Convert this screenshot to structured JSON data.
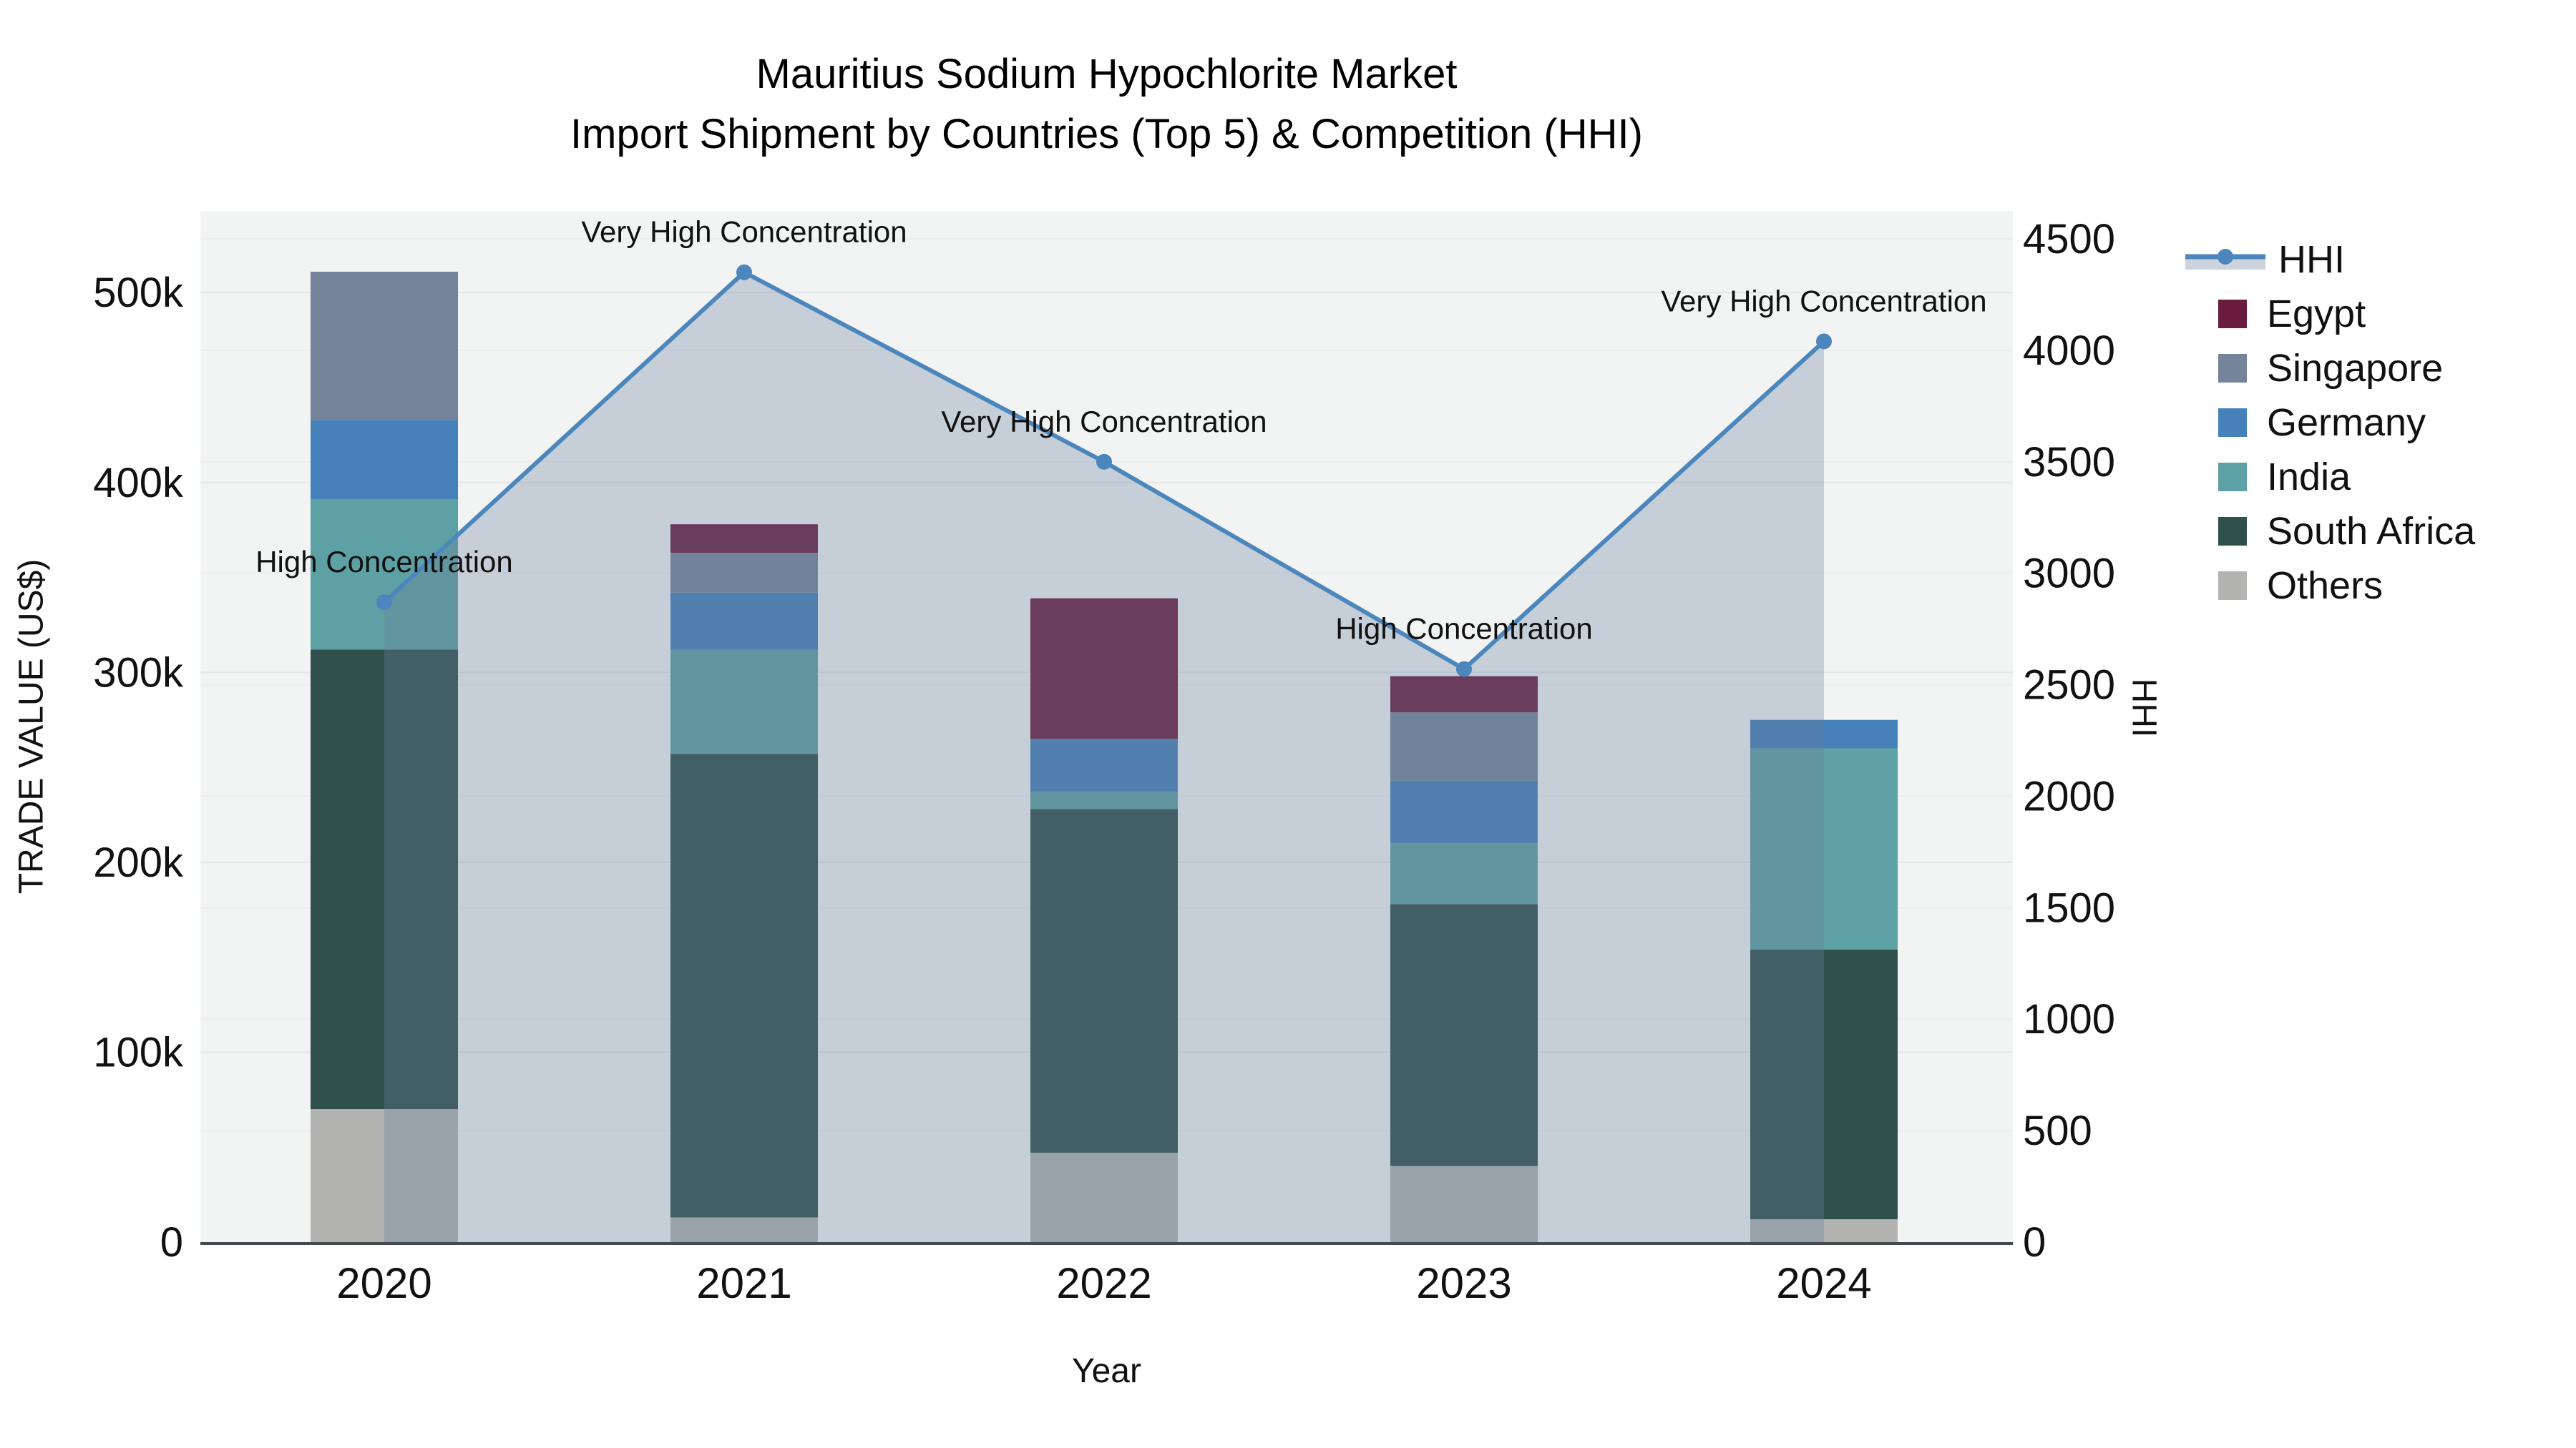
{
  "title": {
    "line1": "Mauritius Sodium Hypochlorite Market",
    "line2": "Import Shipment by Countries (Top 5) & Competition (HHI)"
  },
  "axes": {
    "x": {
      "title": "Year",
      "categories": [
        "2020",
        "2021",
        "2022",
        "2023",
        "2024"
      ]
    },
    "y_left": {
      "title": "TRADE VALUE (US$)",
      "tick_labels": [
        "0",
        "100k",
        "200k",
        "300k",
        "400k",
        "500k"
      ],
      "tick_values_k": [
        0,
        100,
        200,
        300,
        400,
        500
      ],
      "range_k": [
        0,
        543
      ]
    },
    "y_right": {
      "title": "HHI",
      "tick_labels": [
        "0",
        "500",
        "1000",
        "1500",
        "2000",
        "2500",
        "3000",
        "3500",
        "4000",
        "4500"
      ],
      "tick_values": [
        0,
        500,
        1000,
        1500,
        2000,
        2500,
        3000,
        3500,
        4000,
        4500
      ],
      "range": [
        0,
        4625
      ]
    }
  },
  "legend": {
    "items": [
      {
        "label": "HHI",
        "kind": "line",
        "color": "#4B86BC",
        "band_color": "#CDD3DC"
      },
      {
        "label": "Egypt",
        "kind": "swatch",
        "color": "#691C3E"
      },
      {
        "label": "Singapore",
        "kind": "swatch",
        "color": "#75849A"
      },
      {
        "label": "Germany",
        "kind": "swatch",
        "color": "#4681B9"
      },
      {
        "label": "India",
        "kind": "swatch",
        "color": "#5EA1A4"
      },
      {
        "label": "South Africa",
        "kind": "swatch",
        "color": "#30504C"
      },
      {
        "label": "Others",
        "kind": "swatch",
        "color": "#B3B4B2"
      }
    ]
  },
  "chart_data": {
    "type": "bar",
    "subtype": "stacked bars (left axis) + line with markers and area fill (right axis)",
    "categories": [
      "2020",
      "2021",
      "2022",
      "2023",
      "2024"
    ],
    "bar_value_unit": "US$ thousands",
    "series": [
      {
        "name": "Egypt",
        "color": "#691C3E",
        "values": [
          0,
          15,
          74,
          19,
          0
        ]
      },
      {
        "name": "Singapore",
        "color": "#75849A",
        "values": [
          78,
          21,
          0,
          36,
          0
        ]
      },
      {
        "name": "Germany",
        "color": "#4681B9",
        "values": [
          42,
          30,
          28,
          33,
          15
        ]
      },
      {
        "name": "India",
        "color": "#5EA1A4",
        "values": [
          79,
          55,
          9,
          32,
          106
        ]
      },
      {
        "name": "South Africa",
        "color": "#30504C",
        "values": [
          242,
          244,
          181,
          138,
          142
        ]
      },
      {
        "name": "Others",
        "color": "#B3B4B2",
        "values": [
          70,
          13,
          47,
          40,
          12
        ]
      }
    ],
    "stack_order_bottom_to_top": [
      "Others",
      "South Africa",
      "India",
      "Germany",
      "Singapore",
      "Egypt"
    ],
    "bar_totals_k": [
      511,
      378,
      339,
      298,
      275
    ],
    "line": {
      "name": "HHI",
      "color": "#4B86BC",
      "area_fill": "rgba(106,126,156,0.32)",
      "values": [
        2870,
        4350,
        3500,
        2570,
        4040
      ]
    },
    "annotations": [
      {
        "x": "2020",
        "text": "High Concentration"
      },
      {
        "x": "2021",
        "text": "Very High Concentration"
      },
      {
        "x": "2022",
        "text": "Very High Concentration"
      },
      {
        "x": "2023",
        "text": "High Concentration"
      },
      {
        "x": "2024",
        "text": "Very High Concentration"
      }
    ],
    "xlabel": "Year",
    "ylabel_left": "TRADE VALUE (US$)",
    "ylabel_right": "HHI",
    "ylim_left_k": [
      0,
      543
    ],
    "ylim_right": [
      0,
      4625
    ],
    "grid": true,
    "legend_position": "right"
  },
  "colors": {
    "page_bg": "#ffffff",
    "plot_bg": "#F2F3F3",
    "grid_left": "#E4E6E8",
    "grid_right": "#ECEDEF",
    "axis_line": "#444A50",
    "text": "#111111"
  }
}
